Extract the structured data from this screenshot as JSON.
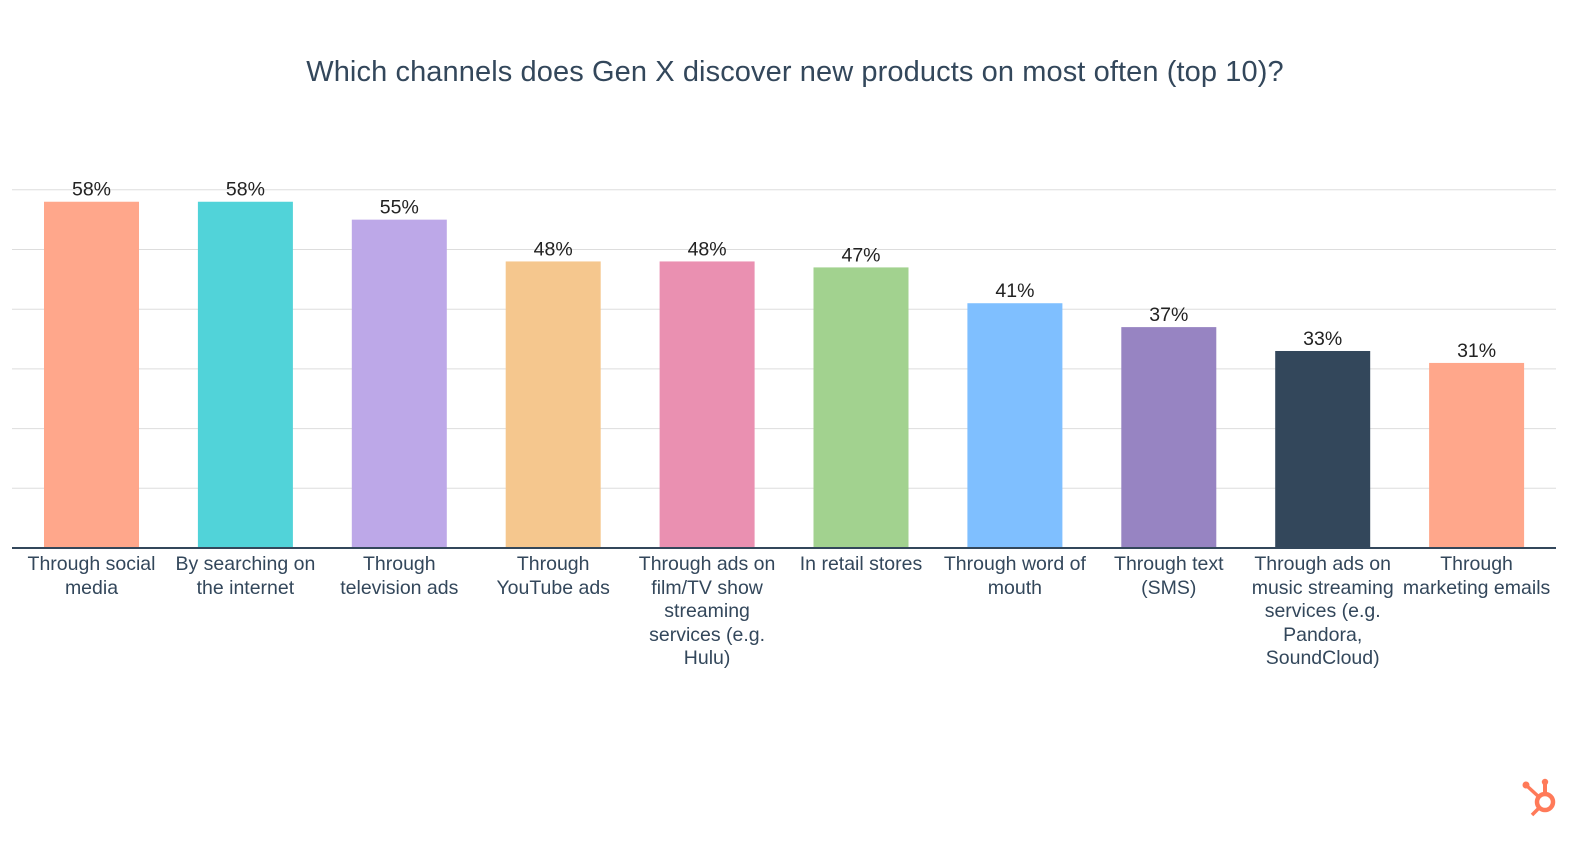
{
  "chart_data": {
    "type": "bar",
    "title": "Which channels does Gen X discover new products on most often (top 10)?",
    "xlabel": "",
    "ylabel": "",
    "ylim": [
      0,
      60
    ],
    "grid": true,
    "legend": "none",
    "categories": [
      "Through social media",
      "By searching on the internet",
      "Through television ads",
      "Through YouTube ads",
      "Through ads on film/TV show streaming services (e.g. Hulu)",
      "In retail stores",
      "Through word of mouth",
      "Through text (SMS)",
      "Through ads on music streaming services (e.g. Pandora, SoundCloud)",
      "Through marketing emails"
    ],
    "values": [
      58,
      58,
      55,
      48,
      48,
      47,
      41,
      37,
      33,
      31
    ],
    "value_labels": [
      "58%",
      "58%",
      "55%",
      "48%",
      "48%",
      "47%",
      "41%",
      "37%",
      "33%",
      "31%"
    ],
    "colors": [
      "#ffa78b",
      "#51d3d9",
      "#bda8e8",
      "#f5c78e",
      "#ea90b1",
      "#a2d28f",
      "#7fbfff",
      "#9784c2",
      "#33475b",
      "#ffa78b"
    ]
  },
  "logo": {
    "icon": "hubspot-sprocket-icon",
    "color": "#ff7a59"
  }
}
